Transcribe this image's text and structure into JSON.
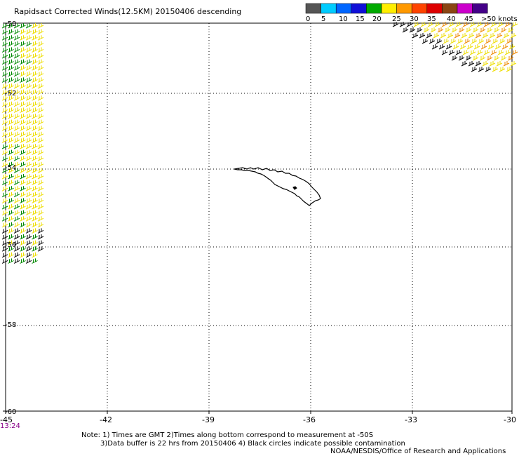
{
  "title": "Rapidsact Corrected Winds(12.5KM) 20150406 descending",
  "legend": {
    "labels": [
      "0",
      "5",
      "10",
      "15",
      "20",
      "25",
      "30",
      "35",
      "40",
      "45",
      ">50 knots"
    ],
    "colors": [
      "#555555",
      "#00ccff",
      "#0066ff",
      "#1010d8",
      "#00aa00",
      "#ffee00",
      "#ff9900",
      "#ff4400",
      "#dd0000",
      "#8b4513",
      "#cc00cc",
      "#440088"
    ]
  },
  "lat_labels": [
    "-50",
    "-52",
    "-54",
    "-56",
    "-58",
    "-60"
  ],
  "lon_labels": [
    "-45",
    "-42",
    "-39",
    "-36",
    "-33",
    "-30"
  ],
  "time_label": "13:24",
  "notes": {
    "line1": "Note: 1) Times are GMT 2)Times along bottom correspond to measurement at -50S",
    "line2": "3)Data buffer is 22 hrs from 20150406 4) Black circles indicate possible contamination",
    "line3": "NOAA/NESDIS/Office of Research and Applications"
  },
  "colors": {
    "grid": "#000000",
    "time_label": "#880088",
    "coast": "#000000"
  }
}
